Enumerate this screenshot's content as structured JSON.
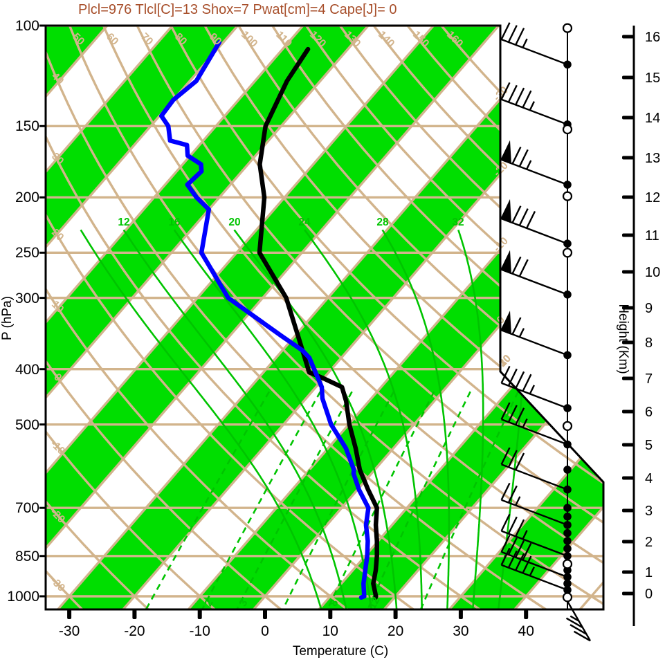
{
  "title": {
    "text": "Plcl=976 Tlcl[C]=13 Shox=7 Pwat[cm]=4 Cape[J]= 0",
    "color": "#A8502C"
  },
  "axes": {
    "pressure": {
      "label": "P (hPa)",
      "ticks": [
        100,
        150,
        200,
        250,
        300,
        400,
        500,
        700,
        850,
        1000
      ]
    },
    "temperature": {
      "label": "Temperature (C)",
      "ticks": [
        -30,
        -20,
        -10,
        0,
        10,
        20,
        30,
        40
      ]
    },
    "height": {
      "label": "Height (Km)",
      "ticks": [
        0,
        1,
        2,
        3,
        4,
        5,
        6,
        7,
        8,
        9,
        10,
        11,
        12,
        13,
        14,
        15,
        16
      ]
    }
  },
  "colors": {
    "band_green": "#00DE00",
    "line_green": "#00C400",
    "tan": "#D2B48C",
    "temperature_curve": "#000000",
    "dewpoint_curve": "#0000FF",
    "frame": "#000000"
  },
  "background": {
    "isotherm_step": 10,
    "isotherm_boundary_labels": [
      -30,
      -20,
      -10,
      0,
      10,
      20,
      30
    ],
    "dry_adiabat_values": [
      -30,
      -20,
      -10,
      0,
      10,
      20,
      30,
      40,
      50,
      60,
      70,
      80,
      90,
      100,
      110,
      120,
      130,
      140,
      150,
      160
    ],
    "dry_adiabat_top_labels": [
      50,
      60,
      70,
      80,
      90,
      100,
      110,
      120,
      130,
      140,
      150,
      160
    ],
    "dry_adiabat_left_labels": [
      40,
      30,
      20,
      10,
      0,
      -10,
      -20,
      -30
    ],
    "moist_adiabat_values": [
      8,
      12,
      16,
      20,
      24,
      28,
      32,
      36
    ],
    "moist_adiabat_labels": [
      12,
      16,
      20,
      24,
      28,
      32
    ],
    "mixing_ratio_values": [
      1,
      2,
      3,
      5,
      8,
      12,
      20
    ],
    "mixing_ratio_labels": [
      2,
      3,
      8,
      12
    ]
  },
  "chart_data": {
    "type": "line",
    "title": "Skew-T log-P sounding",
    "xlabel": "Temperature (C)",
    "ylabel": "P (hPa)",
    "x_range": [
      -33,
      50
    ],
    "pressure_range": [
      100,
      1054
    ],
    "grid": "skew-t background (isotherms, dry/moist adiabats, mixing ratio lines)",
    "series": [
      {
        "name": "temperature",
        "color": "#000000",
        "points": [
          [
            1005,
            17.1
          ],
          [
            1000,
            17.0
          ],
          [
            950,
            14.9
          ],
          [
            900,
            13.5
          ],
          [
            850,
            11.8
          ],
          [
            800,
            9.8
          ],
          [
            750,
            7.5
          ],
          [
            700,
            5.4
          ],
          [
            650,
            1.6
          ],
          [
            600,
            -2.3
          ],
          [
            550,
            -5.8
          ],
          [
            500,
            -9.9
          ],
          [
            455,
            -13.5
          ],
          [
            430,
            -16.0
          ],
          [
            415,
            -20.0
          ],
          [
            405,
            -23.0
          ],
          [
            350,
            -29.5
          ],
          [
            300,
            -36.4
          ],
          [
            250,
            -46.5
          ],
          [
            200,
            -53.1
          ],
          [
            175,
            -58.2
          ],
          [
            150,
            -62.4
          ],
          [
            125,
            -65.1
          ],
          [
            110,
            -66.1
          ]
        ]
      },
      {
        "name": "dewpoint",
        "color": "#0000FF",
        "points": [
          [
            1005,
            14.9
          ],
          [
            1000,
            15.2
          ],
          [
            950,
            13.4
          ],
          [
            900,
            11.9
          ],
          [
            850,
            10.3
          ],
          [
            800,
            8.4
          ],
          [
            750,
            6.0
          ],
          [
            700,
            4.1
          ],
          [
            650,
            0.2
          ],
          [
            610,
            -2.7
          ],
          [
            600,
            -3.2
          ],
          [
            550,
            -7.3
          ],
          [
            500,
            -12.7
          ],
          [
            450,
            -17.5
          ],
          [
            430,
            -19.1
          ],
          [
            382,
            -24.9
          ],
          [
            371,
            -26.9
          ],
          [
            350,
            -32.0
          ],
          [
            300,
            -45.3
          ],
          [
            250,
            -55.4
          ],
          [
            210,
            -60.0
          ],
          [
            200,
            -63.5
          ],
          [
            190,
            -66.6
          ],
          [
            180,
            -66.2
          ],
          [
            175,
            -67.2
          ],
          [
            169,
            -70.4
          ],
          [
            162,
            -71.9
          ],
          [
            159,
            -75.1
          ],
          [
            150,
            -77.3
          ],
          [
            144,
            -79.7
          ],
          [
            135,
            -80.0
          ],
          [
            125,
            -79.0
          ],
          [
            107,
            -80.6
          ]
        ]
      }
    ]
  },
  "wind": {
    "dots_p": [
      117,
      149,
      190,
      241,
      296,
      378,
      468,
      542,
      600,
      650,
      700,
      725,
      750,
      775,
      800,
      825,
      850,
      875,
      900,
      925,
      950,
      975,
      1000
    ],
    "open_circles_p": [
      101,
      152,
      199,
      250,
      503,
      878,
      1004
    ],
    "barbs": [
      {
        "p": 117,
        "flags": 0,
        "full": 3,
        "half": 1
      },
      {
        "p": 149,
        "flags": 0,
        "full": 4,
        "half": 1
      },
      {
        "p": 190,
        "flags": 1,
        "full": 2,
        "half": 1
      },
      {
        "p": 241,
        "flags": 1,
        "full": 3,
        "half": 0
      },
      {
        "p": 296,
        "flags": 1,
        "full": 2,
        "half": 0
      },
      {
        "p": 378,
        "flags": 1,
        "full": 1,
        "half": 1
      },
      {
        "p": 468,
        "flags": 0,
        "full": 4,
        "half": 1
      },
      {
        "p": 542,
        "flags": 0,
        "full": 3,
        "half": 1
      },
      {
        "p": 650,
        "flags": 0,
        "full": 3,
        "half": 0
      },
      {
        "p": 750,
        "flags": 0,
        "full": 2,
        "half": 1
      },
      {
        "p": 850,
        "flags": 0,
        "full": 3,
        "half": 1
      },
      {
        "p": 925,
        "flags": 0,
        "full": 4,
        "half": 0
      },
      {
        "p": 975,
        "flags": 0,
        "full": 4,
        "half": 1
      },
      {
        "p": 1020,
        "flags": 0,
        "full": 3,
        "half": 1,
        "down": true
      }
    ]
  }
}
